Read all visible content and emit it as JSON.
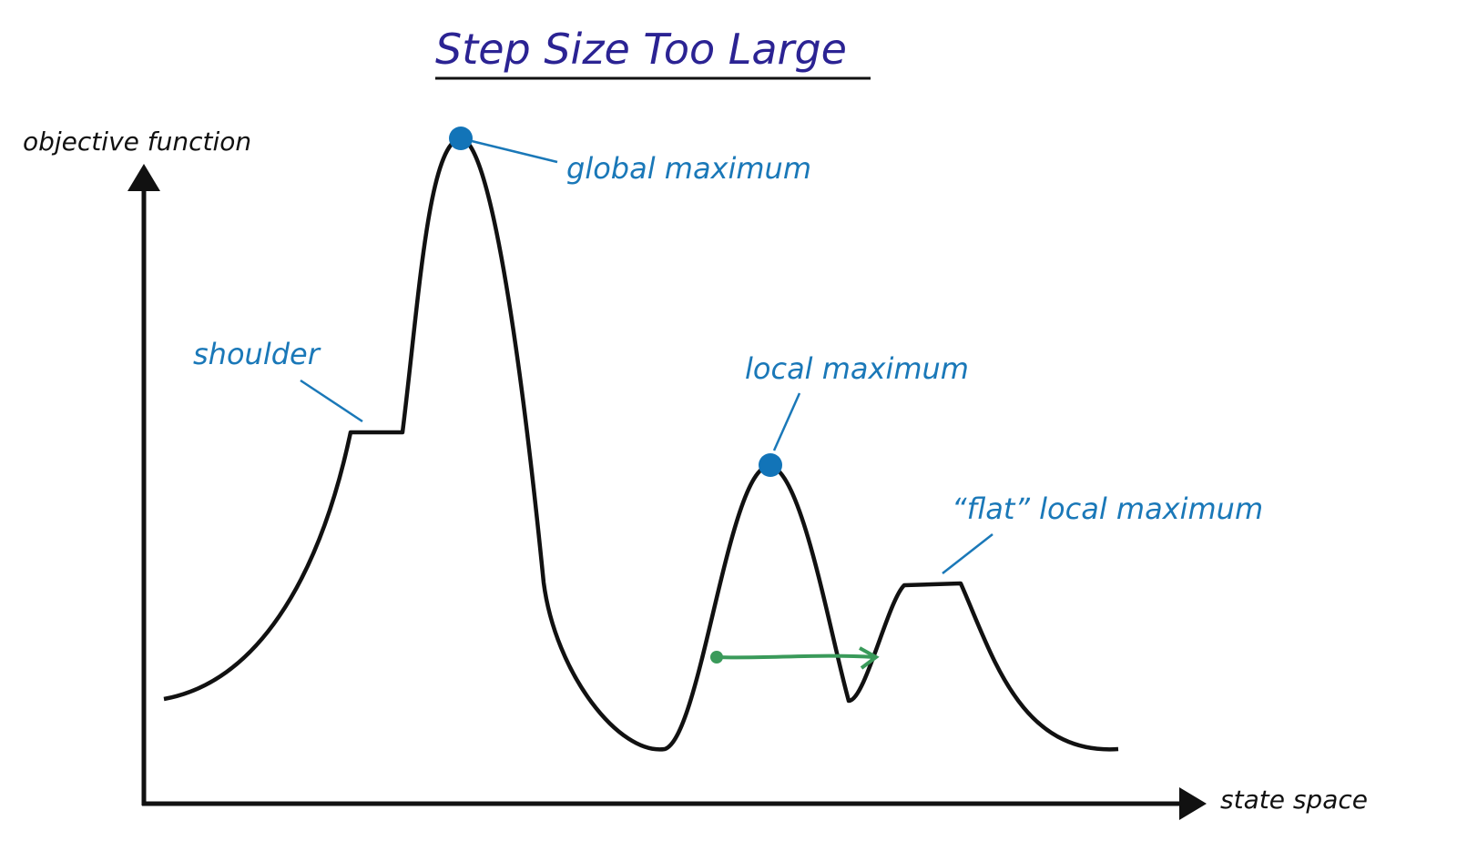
{
  "title": "Step Size Too Large",
  "axes": {
    "y_label": "objective function",
    "x_label": "state space"
  },
  "annotations": [
    {
      "label": "global maximum"
    },
    {
      "label": "shoulder"
    },
    {
      "label": "local maximum"
    },
    {
      "label": "“flat” local maximum"
    }
  ]
}
